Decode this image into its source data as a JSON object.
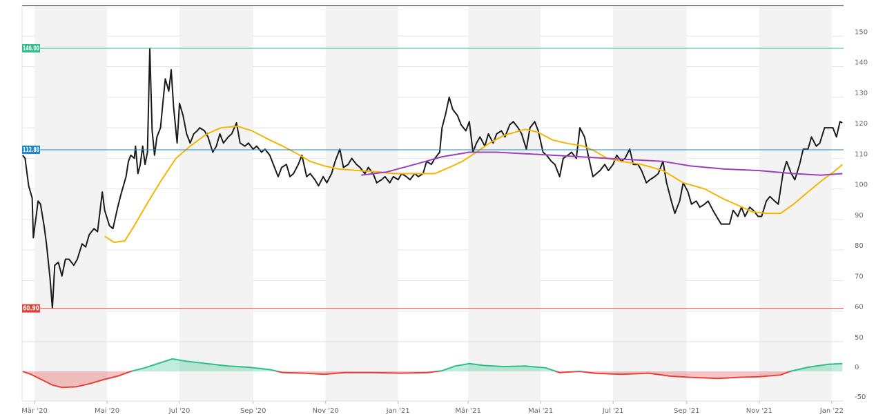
{
  "chart_data": [
    {
      "type": "line",
      "xlim": [
        -10.5,
        681
      ],
      "ylim": [
        50,
        160
      ],
      "yticks": [
        60,
        70,
        80,
        90,
        100,
        110,
        120,
        130,
        140,
        150
      ],
      "grid": true,
      "reference_lines": [
        {
          "value": 146,
          "label": "146.00",
          "color": "#2dbf8a"
        },
        {
          "value": 112.8,
          "label": "112.80",
          "color": "#1c86c8"
        },
        {
          "value": 60.9,
          "label": "60.90",
          "color": "#e5403a"
        }
      ],
      "series": [
        {
          "color": "#1a1a1a",
          "x": [
            -10,
            -8,
            -5,
            -2,
            -1,
            3,
            5,
            8,
            10,
            13,
            15,
            17,
            20,
            23,
            26,
            29,
            33,
            36,
            40,
            43,
            46,
            50,
            53,
            57,
            59,
            63,
            66,
            70,
            73,
            77,
            79,
            81,
            84,
            85,
            87,
            89,
            91,
            93,
            95,
            97,
            99,
            101,
            103,
            106,
            108,
            110,
            113,
            115,
            117,
            120,
            122,
            125,
            128,
            131,
            134,
            137,
            139,
            143,
            146,
            150,
            153,
            156,
            159,
            163,
            166,
            170,
            173,
            177,
            180,
            184,
            187,
            191,
            194,
            198,
            201,
            205,
            208,
            212,
            215,
            218,
            222,
            225,
            229,
            232,
            236,
            239,
            243,
            246,
            250,
            253,
            257,
            260,
            264,
            267,
            271,
            274,
            278,
            281,
            285,
            288,
            292,
            295,
            299,
            302,
            306,
            309,
            313,
            316,
            320,
            323,
            327,
            330,
            334,
            337,
            341,
            343,
            346,
            349,
            352,
            356,
            359,
            363,
            366,
            369,
            372,
            375,
            379,
            382,
            386,
            389,
            393,
            396,
            400,
            403,
            407,
            410,
            414,
            417,
            421,
            424,
            428,
            431,
            435,
            438,
            442,
            445,
            449,
            452,
            456,
            459,
            463,
            466,
            470,
            473,
            476,
            480,
            483,
            487,
            490,
            494,
            497,
            501,
            504,
            508,
            511,
            515,
            518,
            522,
            525,
            529,
            532,
            536,
            539,
            543,
            546,
            550,
            553,
            557,
            560,
            564,
            567,
            571,
            574,
            578,
            581,
            585,
            588,
            592,
            595,
            598,
            602,
            605,
            609,
            612,
            616,
            619,
            623,
            626,
            630,
            633,
            637,
            640,
            644,
            647,
            651,
            654,
            658,
            661,
            665,
            668,
            672,
            675,
            678,
            680
          ],
          "values": [
            111,
            110,
            101,
            97,
            84,
            96,
            95,
            88,
            82,
            71,
            61,
            75,
            76,
            71.5,
            77,
            77,
            75,
            77,
            82,
            81,
            85,
            87,
            86,
            99,
            93,
            88,
            87,
            94,
            98.6,
            104,
            109,
            111,
            110,
            114,
            105,
            108,
            114,
            108,
            112,
            146,
            119,
            111,
            117,
            120,
            128,
            136,
            132,
            139,
            127,
            115,
            128,
            124,
            118,
            115,
            118,
            119,
            120,
            119,
            117,
            112,
            114,
            118,
            115,
            117,
            118,
            121.6,
            115,
            114,
            115,
            113,
            114,
            112,
            113,
            111,
            108,
            104,
            107,
            108,
            104,
            105,
            108,
            111,
            104,
            105,
            103,
            101,
            104,
            102,
            105,
            109,
            113,
            107,
            108,
            110,
            108,
            107,
            105,
            107,
            105,
            102,
            103,
            104,
            102,
            104,
            103,
            105,
            104,
            103,
            105,
            104,
            105,
            109,
            108,
            110,
            112,
            120,
            124.5,
            130,
            126,
            124,
            121,
            119,
            122,
            112,
            115,
            117,
            114,
            118,
            115,
            118,
            119,
            117,
            121,
            122,
            120,
            118,
            113,
            120,
            122,
            119,
            112,
            111,
            109,
            108,
            104,
            110,
            111,
            112,
            110,
            120,
            117,
            111,
            104,
            105,
            106,
            108,
            106,
            108,
            111,
            109,
            110,
            113,
            108,
            108,
            106,
            102,
            103,
            104,
            105,
            109,
            102,
            96,
            92,
            96,
            102,
            99,
            95,
            96,
            94,
            95,
            96,
            93,
            91,
            88.5,
            88.5,
            88.5,
            93,
            91,
            94,
            91,
            94,
            93,
            91,
            91,
            96,
            97.5,
            96,
            95,
            105,
            109,
            105,
            103,
            108,
            113,
            113,
            117,
            114,
            115,
            120,
            120,
            120,
            117,
            122,
            121.6
          ]
        },
        {
          "color": "#f5b400",
          "x": [
            59,
            67,
            76,
            84,
            96,
            107,
            119,
            131,
            145,
            157,
            171,
            183,
            198,
            209,
            221,
            232,
            244,
            256,
            273,
            291,
            302,
            320,
            337,
            349,
            360,
            372,
            383,
            395,
            413,
            424,
            436,
            447,
            462,
            471,
            482,
            494,
            511,
            529,
            546,
            564,
            581,
            593,
            604,
            616,
            628,
            639,
            651,
            662,
            674,
            680
          ],
          "values": [
            84.5,
            82.5,
            83,
            88,
            96,
            103,
            110,
            114,
            118,
            120,
            120.5,
            119,
            116,
            114,
            111.5,
            109,
            107.5,
            106.5,
            106,
            105.5,
            105,
            105,
            105,
            107,
            109,
            112,
            115,
            117.5,
            119.5,
            118.5,
            116,
            115,
            114,
            112.5,
            110,
            109,
            108,
            106,
            102,
            100,
            96.5,
            94.5,
            92.5,
            92,
            92,
            95,
            99,
            102.5,
            106,
            108
          ]
        },
        {
          "color": "#9b3fbf",
          "x": [
            275,
            296,
            320,
            343,
            366,
            389,
            413,
            436,
            459,
            482,
            506,
            529,
            552,
            581,
            610,
            639,
            662,
            680
          ],
          "values": [
            104.5,
            105.5,
            108,
            110.5,
            112,
            112,
            111.5,
            111,
            110.5,
            110,
            109.5,
            109,
            107.5,
            106.5,
            106,
            105,
            104.5,
            105
          ]
        }
      ]
    },
    {
      "type": "area",
      "xlim": [
        -10.5,
        681
      ],
      "xticks": [
        {
          "value": 0,
          "label": "Mär '20"
        },
        {
          "value": 61,
          "label": "Mai '20"
        },
        {
          "value": 122,
          "label": "Jul '20"
        },
        {
          "value": 184,
          "label": "Sep '20"
        },
        {
          "value": 245,
          "label": "Nov '20"
        },
        {
          "value": 306,
          "label": "Jan '21"
        },
        {
          "value": 365,
          "label": "Mär '21"
        },
        {
          "value": 426,
          "label": "Mai '21"
        },
        {
          "value": 487,
          "label": "Jul '21"
        },
        {
          "value": 549,
          "label": "Sep '21"
        },
        {
          "value": 610,
          "label": "Nov '21"
        },
        {
          "value": 671,
          "label": "Jan '22"
        }
      ],
      "ylim": [
        -50,
        50
      ],
      "yticks": [
        50,
        0,
        -50
      ],
      "positive_color": "#2dbf8a",
      "negative_color": "#e5403a",
      "x": [
        -10,
        -3,
        6,
        15,
        23,
        35,
        46,
        58,
        70,
        81,
        93,
        105,
        116,
        128,
        145,
        163,
        180,
        198,
        209,
        227,
        244,
        261,
        285,
        308,
        331,
        343,
        354,
        366,
        378,
        395,
        413,
        430,
        442,
        459,
        471,
        494,
        517,
        535,
        552,
        575,
        593,
        610,
        628,
        636,
        651,
        668,
        680
      ],
      "values": [
        0,
        -5,
        -14,
        -23,
        -27,
        -26,
        -21,
        -14,
        -8,
        0,
        6,
        14,
        21,
        17,
        13,
        9,
        7,
        3,
        -2,
        -3,
        -5,
        -2,
        -2,
        -3,
        -2,
        1,
        9,
        13,
        10,
        8,
        9,
        6,
        -2,
        0,
        -3,
        -5,
        -3,
        -8,
        -10,
        -12,
        -10,
        -9,
        -6,
        0,
        7,
        12,
        13
      ]
    }
  ]
}
